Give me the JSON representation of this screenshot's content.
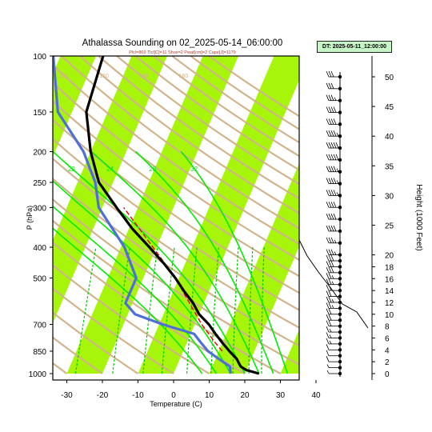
{
  "title": "Athalassa Sounding on 02_2025-05-14_06:00:00",
  "subtitle": "Plcl=869 Tlcl[C]=11 Shox=2 Pwat[cm]=2 Cape[J]=1179",
  "dt_label": "DT: 2025-05-11_12:00:00",
  "colors": {
    "stripe": "#a6f50a",
    "dry_adiabat": "#d2b48c",
    "moist_adiabat": "#00ee00",
    "mixing_ratio": "#00cc00",
    "temperature": "#000000",
    "dewpoint": "#4f6fd8",
    "parcel": "#e60000",
    "frame": "#000000"
  },
  "chart_data": {
    "type": "line",
    "title": "Athalassa Sounding on 02_2025-05-14_06:00:00",
    "xlabel": "Temperature (C)",
    "ylabel": "P (hPa)",
    "y2label": "Height (1000 Feet)",
    "xlim": [
      -33,
      45
    ],
    "ylim": [
      1000,
      100
    ],
    "y_scale": "log (pressure)",
    "skewed_isotherms": true,
    "x_ticks": [
      -30,
      -20,
      -10,
      0,
      10,
      20,
      30,
      40
    ],
    "y_ticks": [
      100,
      150,
      200,
      250,
      300,
      400,
      500,
      700,
      850,
      1000
    ],
    "height_ticks": [
      0,
      2,
      4,
      6,
      8,
      10,
      12,
      14,
      16,
      18,
      20,
      25,
      30,
      35,
      40,
      45,
      50
    ],
    "mixing_ratio_labels": [
      "8",
      "12",
      "16",
      "20",
      "24",
      "28",
      "32"
    ],
    "dry_adiabat_labels": [
      "20",
      "40",
      "60",
      "80",
      "100",
      "120",
      "140",
      "160"
    ],
    "series": [
      {
        "pressure": [
          1000,
          975,
          950,
          925,
          900,
          850,
          800,
          750,
          700,
          650,
          600,
          550,
          500,
          450,
          400,
          350,
          300,
          250,
          200,
          150,
          100
        ],
        "temperature": [
          24,
          20,
          18,
          17,
          16,
          13,
          10,
          7,
          4,
          0,
          -3,
          -7,
          -11,
          -16,
          -22,
          -29,
          -36,
          -44,
          -50,
          -56,
          -58
        ]
      },
      {
        "pressure": [
          1000,
          950,
          900,
          850,
          800,
          750,
          700,
          650,
          600,
          500,
          400,
          300,
          250,
          200,
          150,
          100
        ],
        "dewpoint": [
          16,
          15,
          11,
          7,
          4,
          1,
          -9,
          -18,
          -22,
          -22,
          -29,
          -41,
          -45,
          -52,
          -64,
          -72
        ]
      },
      {
        "pressure": [
          850,
          800,
          700,
          600,
          500,
          400,
          300
        ],
        "parcel": [
          11,
          8,
          2,
          -4,
          -11,
          -21,
          -34
        ]
      }
    ],
    "wind_barbs": {
      "heights_kft": [
        0,
        1,
        2,
        3,
        4,
        5,
        6,
        7,
        8,
        9,
        10,
        11,
        12,
        13,
        14,
        15,
        16,
        17,
        18,
        19,
        20,
        22,
        24,
        26,
        28,
        30,
        32,
        34,
        36,
        38,
        40,
        42,
        44,
        46,
        48,
        50
      ],
      "speed_kt": [
        5,
        5,
        10,
        10,
        10,
        15,
        15,
        15,
        20,
        20,
        20,
        25,
        25,
        20,
        20,
        25,
        25,
        30,
        30,
        30,
        35,
        35,
        40,
        40,
        40,
        45,
        45,
        45,
        50,
        50,
        45,
        40,
        40,
        35,
        30,
        30
      ]
    }
  }
}
